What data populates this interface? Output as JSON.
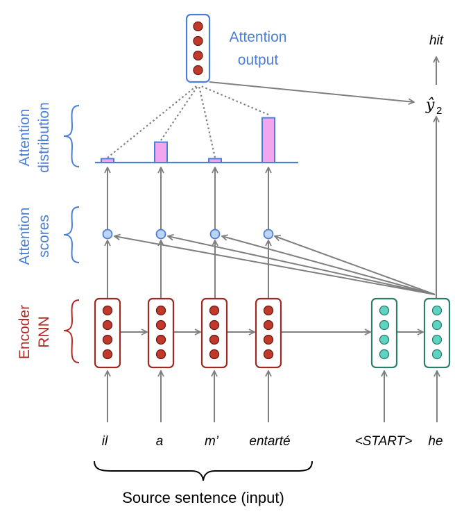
{
  "labels": {
    "attention_output": [
      "Attention",
      "output"
    ],
    "attention_distribution": [
      "Attention",
      "distribution"
    ],
    "attention_scores": [
      "Attention",
      "scores"
    ],
    "encoder_rnn": [
      "Encoder",
      "RNN"
    ],
    "source_sentence": "Source sentence (input)",
    "output_word": "hit",
    "prediction_symbol": "ŷ",
    "prediction_subscript": "2"
  },
  "source_words": [
    "il",
    "a",
    "m’",
    "entarté"
  ],
  "decoder_words": [
    "<START>",
    "he"
  ],
  "attention_distribution_values": [
    0.08,
    0.42,
    0.08,
    0.92
  ],
  "colors": {
    "encoder": "#b22a24",
    "encoder_fill": "#c0392b",
    "decoder": "#2e7d6b",
    "decoder_fill": "#5fd3c1",
    "attention": "#4a7fd9",
    "attention_bar_fill": "#f3a6f0",
    "arrow": "#7f7f7f"
  }
}
